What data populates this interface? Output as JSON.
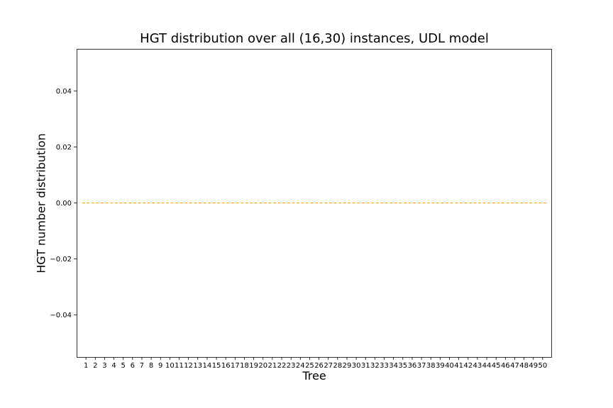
{
  "chart_data": {
    "type": "box",
    "title": "HGT distribution over all (16,30) instances, UDL model",
    "xlabel": "Tree",
    "ylabel": "HGT number distribution",
    "categories": [
      "1",
      "2",
      "3",
      "4",
      "5",
      "6",
      "7",
      "8",
      "9",
      "10",
      "11",
      "12",
      "13",
      "14",
      "15",
      "16",
      "17",
      "18",
      "19",
      "20",
      "21",
      "22",
      "23",
      "24",
      "25",
      "26",
      "27",
      "28",
      "29",
      "30",
      "31",
      "32",
      "33",
      "34",
      "35",
      "36",
      "37",
      "38",
      "39",
      "40",
      "41",
      "42",
      "43",
      "44",
      "45",
      "46",
      "47",
      "48",
      "49",
      "50"
    ],
    "median_values": [
      0,
      0,
      0,
      0,
      0,
      0,
      0,
      0,
      0,
      0,
      0,
      0,
      0,
      0,
      0,
      0,
      0,
      0,
      0,
      0,
      0,
      0,
      0,
      0,
      0,
      0,
      0,
      0,
      0,
      0,
      0,
      0,
      0,
      0,
      0,
      0,
      0,
      0,
      0,
      0,
      0,
      0,
      0,
      0,
      0,
      0,
      0,
      0,
      0,
      0
    ],
    "median_color": "#ff9f0e",
    "yticks": [
      0.04,
      0.02,
      0.0,
      -0.02,
      -0.04
    ],
    "ytick_labels": [
      "0.04",
      "0.02",
      "0.00",
      "−0.02",
      "−0.04"
    ],
    "ylim": [
      -0.055,
      0.055
    ],
    "grid": false
  }
}
